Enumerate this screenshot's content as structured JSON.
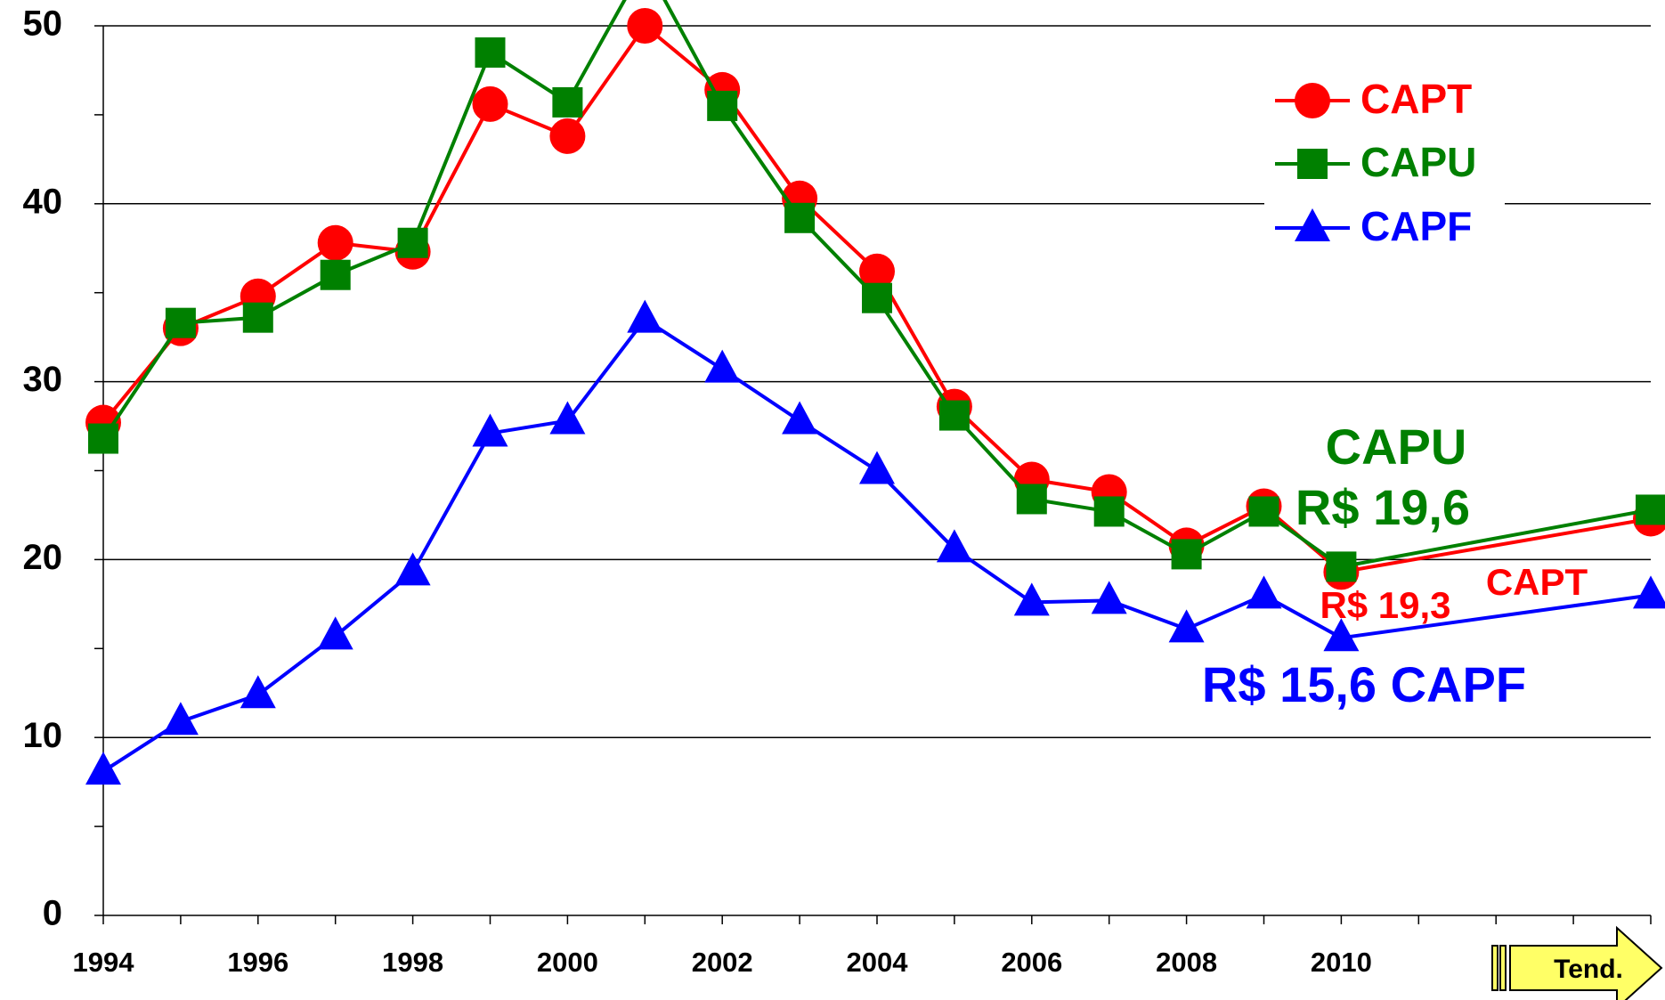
{
  "chart_data": {
    "type": "line",
    "x": [
      1994,
      1995,
      1996,
      1997,
      1998,
      1999,
      2000,
      2001,
      2002,
      2003,
      2004,
      2005,
      2006,
      2007,
      2008,
      2009,
      2010,
      2014
    ],
    "series": [
      {
        "name": "CAPT",
        "color": "#ff0000",
        "marker": "circle",
        "values": [
          27.7,
          33.0,
          34.8,
          37.8,
          37.3,
          45.6,
          43.8,
          50.0,
          46.4,
          40.3,
          36.2,
          28.6,
          24.5,
          23.8,
          20.8,
          23.0,
          19.3,
          22.3
        ]
      },
      {
        "name": "CAPU",
        "color": "#008000",
        "marker": "square",
        "values": [
          26.8,
          33.3,
          33.6,
          36.0,
          37.8,
          48.5,
          45.7,
          53.5,
          45.5,
          39.2,
          34.7,
          28.1,
          23.4,
          22.7,
          20.3,
          22.7,
          19.6,
          22.8
        ]
      },
      {
        "name": "CAPF",
        "color": "#0000ff",
        "marker": "triangle",
        "values": [
          8.1,
          10.9,
          12.4,
          15.7,
          19.3,
          27.1,
          27.8,
          33.5,
          30.7,
          27.8,
          25.0,
          20.6,
          17.6,
          17.7,
          16.1,
          18.0,
          15.6,
          18.0
        ]
      }
    ],
    "xlim": [
      1994,
      2014
    ],
    "xticks": [
      1994,
      1996,
      1998,
      2000,
      2002,
      2004,
      2006,
      2008,
      2010,
      {
        "value": 2014,
        "label": "Tend."
      }
    ],
    "ylim": [
      0,
      50
    ],
    "yticks": [
      0,
      10,
      20,
      30,
      40,
      50
    ],
    "grid": true,
    "legend": "top-right",
    "annotations": [
      {
        "text": "CAPU",
        "color": "#008000"
      },
      {
        "text": "R$ 19,6",
        "color": "#008000"
      },
      {
        "text": "CAPT",
        "color": "#ff0000"
      },
      {
        "text": "R$ 19,3",
        "color": "#ff0000"
      },
      {
        "text": "R$ 15,6 CAPF",
        "color": "#0000ff"
      }
    ]
  }
}
